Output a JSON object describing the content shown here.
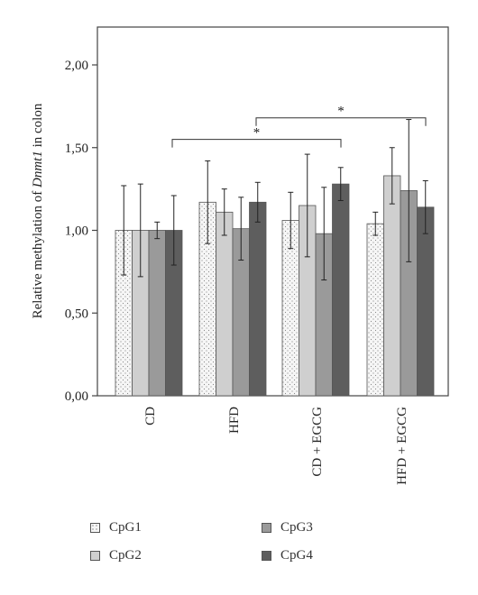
{
  "chart_data": {
    "type": "bar",
    "ylabel_prefix": "Relative methylation of ",
    "ylabel_italic": "Dnmt1",
    "ylabel_suffix": " in colon",
    "ylim": [
      0,
      2.25
    ],
    "yticks": [
      "0,00",
      "0,50",
      "1,00",
      "1,50",
      "2,00"
    ],
    "ytick_values": [
      0,
      0.5,
      1.0,
      1.5,
      2.0
    ],
    "categories": [
      "CD",
      "HFD",
      "CD + EGCG",
      "HFD + EGCG"
    ],
    "series": [
      {
        "name": "CpG1",
        "color": "#f3f3f3",
        "pattern": "dots",
        "values": [
          1.0,
          1.17,
          1.06,
          1.04
        ],
        "errors": [
          0.27,
          0.25,
          0.17,
          0.07
        ]
      },
      {
        "name": "CpG2",
        "color": "#cfcfcf",
        "values": [
          1.0,
          1.11,
          1.15,
          1.33
        ],
        "errors": [
          0.28,
          0.14,
          0.31,
          0.17
        ]
      },
      {
        "name": "CpG3",
        "color": "#9a9a9a",
        "values": [
          1.0,
          1.01,
          0.98,
          1.24
        ],
        "errors": [
          0.05,
          0.19,
          0.28,
          0.43
        ]
      },
      {
        "name": "CpG4",
        "color": "#5e5e5e",
        "values": [
          1.0,
          1.17,
          1.28,
          1.14
        ],
        "errors": [
          0.21,
          0.12,
          0.1,
          0.16
        ]
      }
    ],
    "significance": [
      {
        "from": "CD",
        "to": "CD + EGCG",
        "label": "*",
        "y": 1.55
      },
      {
        "from": "HFD",
        "to": "HFD + EGCG",
        "label": "*",
        "y": 1.68
      }
    ],
    "grid": false,
    "legend_position": "bottom"
  }
}
